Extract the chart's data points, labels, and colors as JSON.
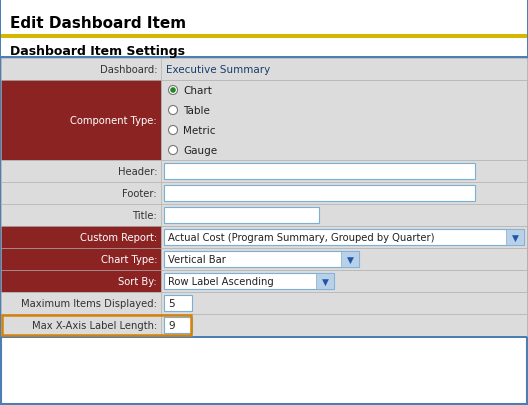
{
  "title": "Edit Dashboard Item",
  "title_underline_color": "#d4b800",
  "section_header": "Dashboard Item Settings",
  "bg_color": "#e8e8e8",
  "outer_border_color": "#4a7fb5",
  "rows": [
    {
      "label": "Dashboard:",
      "value": "Executive Summary",
      "type": "text",
      "label_bg": "#dcdcdc",
      "value_bg": "#dcdcdc",
      "label_color": "#333333"
    },
    {
      "label": "Component Type:",
      "type": "radio",
      "label_bg": "#8b2323",
      "value_bg": "#dcdcdc",
      "label_color": "#ffffff",
      "options": [
        "Chart",
        "Table",
        "Metric",
        "Gauge"
      ],
      "selected": 0
    },
    {
      "label": "Header:",
      "type": "input",
      "label_bg": "#dcdcdc",
      "value_bg": "#dcdcdc",
      "label_color": "#333333"
    },
    {
      "label": "Footer:",
      "type": "input",
      "label_bg": "#dcdcdc",
      "value_bg": "#dcdcdc",
      "label_color": "#333333"
    },
    {
      "label": "Title:",
      "type": "input_short",
      "label_bg": "#dcdcdc",
      "value_bg": "#dcdcdc",
      "label_color": "#333333"
    },
    {
      "label": "Custom Report:",
      "value": "Actual Cost (Program Summary, Grouped by Quarter)",
      "type": "dropdown",
      "label_bg": "#8b2323",
      "value_bg": "#dcdcdc",
      "label_color": "#ffffff"
    },
    {
      "label": "Chart Type:",
      "value": "Vertical Bar",
      "type": "dropdown_short",
      "label_bg": "#8b2323",
      "value_bg": "#dcdcdc",
      "label_color": "#ffffff"
    },
    {
      "label": "Sort By:",
      "value": "Row Label Ascending",
      "type": "dropdown_short2",
      "label_bg": "#8b2323",
      "value_bg": "#dcdcdc",
      "label_color": "#ffffff"
    },
    {
      "label": "Maximum Items Displayed:",
      "value": "5",
      "type": "input_tiny",
      "label_bg": "#dcdcdc",
      "value_bg": "#dcdcdc",
      "label_color": "#333333"
    },
    {
      "label": "Max X-Axis Label Length:",
      "value": "9",
      "type": "input_tiny_highlighted",
      "label_bg": "#dcdcdc",
      "value_bg": "#dcdcdc",
      "label_color": "#333333",
      "highlight_color": "#d4820a"
    }
  ],
  "input_border_color": "#7bafd4",
  "fig_width": 5.28,
  "fig_height": 4.06,
  "dpi": 100
}
